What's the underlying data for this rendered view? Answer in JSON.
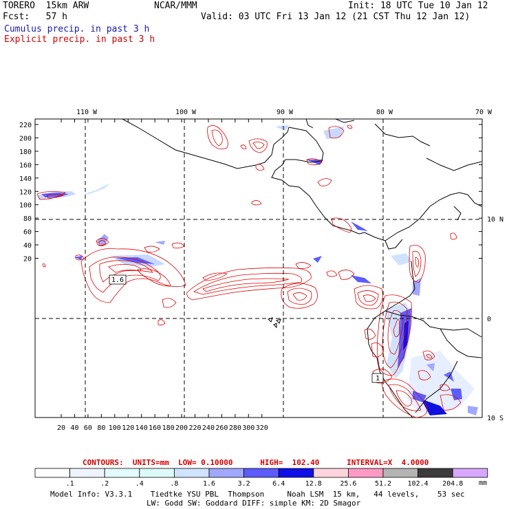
{
  "header": {
    "model": "TORERO  15km ARW",
    "org": "NCAR/MMM",
    "init": "Init: 18 UTC Tue 10 Jan 12",
    "fcst": "Fcst:   57 h",
    "valid": "Valid: 03 UTC Fri 13 Jan 12 (21 CST Thu 12 Jan 12)",
    "legend_cumulus": "Cumulus precip. in past 3 h",
    "legend_explicit": "Explicit precip. in past 3 h"
  },
  "map": {
    "lon_labels": [
      "110 W",
      "100 W",
      "90 W",
      "80 W",
      "70 W"
    ],
    "lat_labels": [
      "10 N",
      "0",
      "10 S"
    ],
    "y_ticks": [
      "220",
      "200",
      "180",
      "160",
      "140",
      "120",
      "100",
      "80",
      "60",
      "40",
      "20"
    ],
    "x_ticks": [
      "20",
      "40",
      "60",
      "80",
      "100",
      "120",
      "140",
      "160",
      "180",
      "200",
      "220",
      "240",
      "260",
      "280",
      "300",
      "320"
    ],
    "contour_labels": [
      "1.6",
      "1"
    ],
    "colors": {
      "coast": "#000000",
      "explicit": "#e00000",
      "cumulus_light": "#c8d8ff",
      "cumulus_mid": "#6a6aff",
      "cumulus_dark": "#1010e0"
    }
  },
  "contour_info": {
    "line": "CONTOURS:  UNITS=mm  LOW= 0.10000      HIGH=  102.40      INTERVAL=X  4.0000"
  },
  "colorbar": {
    "labels": [
      ".1",
      ".2",
      ".4",
      ".8",
      "1.6",
      "3.2",
      "6.4",
      "12.8",
      "25.6",
      "51.2",
      "102.4",
      "204.8"
    ],
    "units": "mm",
    "colors": [
      "#ffffff",
      "#eef3ff",
      "#e2fbff",
      "#dcfaf8",
      "#cfe3ff",
      "#a0a8ff",
      "#5c5cff",
      "#1010e8",
      "#ffd4dc",
      "#ff9ac4",
      "#b4b4b4",
      "#3c3c3c",
      "#d8a8ff"
    ]
  },
  "footer": {
    "line1": "Model Info: V3.3.1    Tiedtke YSU PBL  Thompson     Noah LSM  15 km,   44 levels,    53 sec",
    "line2": "LW: Godd SW: Goddard DIFF: simple KM: 2D Smagor"
  }
}
